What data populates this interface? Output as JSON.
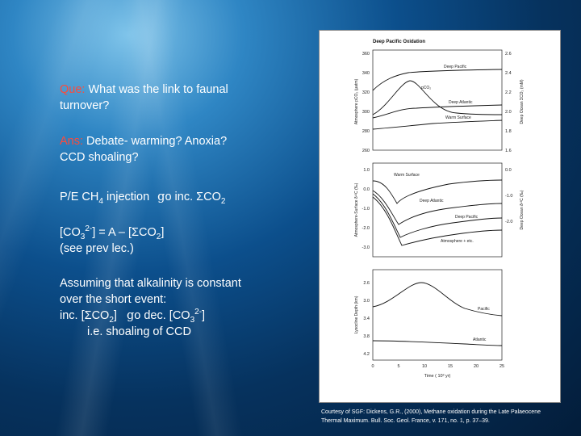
{
  "question": {
    "label": "Que:",
    "text": "What was the link to faunal turnover?"
  },
  "answer": {
    "label": "Ans:",
    "text": "Debate- warming? Anoxia? CCD shoaling?"
  },
  "injection": {
    "prefix": "P/E CH",
    "sub": "4",
    "mid": "injection",
    "arrow": "g",
    "suffix": "o inc. ΣCO",
    "suffix_sub": "2"
  },
  "carbonate_eq": {
    "part1": "[CO",
    "sub1": "3",
    "sup1": "2-",
    "part2": "] = A – [ΣCO",
    "sub2": "2",
    "part3": "]",
    "note": "(see prev lec.)"
  },
  "assumption": {
    "line1": "Assuming that alkalinity is constant",
    "line2": "over the short event:",
    "inc": " inc. [ΣCO",
    "inc_sub": "2",
    "inc_close": "]",
    "arrow": "g",
    "dec": "o dec. [CO",
    "dec_sub": "3",
    "dec_sup": "2-",
    "dec_close": "]",
    "line4": "i.e. shoaling of CCD"
  },
  "figure": {
    "title": "Deep Pacific Oxidation",
    "panel1": {
      "left_ticks": [
        "360",
        "340",
        "320",
        "300",
        "280",
        "260"
      ],
      "right_ticks": [
        "2.6",
        "2.4",
        "2.2",
        "2.0",
        "1.8",
        "1.6"
      ],
      "left_axis_label": "Atmosphere pCO₂ (µatm)",
      "right_axis_label": "Deep Ocean ΣCO₂ (mM)",
      "labels": [
        "Deep Pacific",
        "pCO₂",
        "Deep Atlantic",
        "Warm Surface"
      ]
    },
    "panel2": {
      "left_ticks": [
        "1.0",
        "0.0",
        "-1.0",
        "-2.0",
        "-3.0"
      ],
      "right_ticks": [
        "0.0",
        "-1.0",
        "-2.0"
      ],
      "left_axis_label": "Atmosphere-Surface δ¹³C (‰)",
      "right_axis_label": "Deep Ocean δ¹³C (‰)",
      "labels": [
        "Warm Surface",
        "Deep Atlantic",
        "Deep Pacific",
        "Atmosphere + etc."
      ]
    },
    "panel3": {
      "left_ticks": [
        "2.6",
        "3.0",
        "3.4",
        "3.8",
        "4.2"
      ],
      "x_ticks": [
        "0",
        "5",
        "10",
        "15",
        "20",
        "25"
      ],
      "left_axis_label": "Lysocline Depth (km)",
      "x_axis_label": "Time ( 10³ yr)",
      "labels": [
        "Pacific",
        "Atlantic"
      ]
    }
  },
  "credit": {
    "line1": "Courtesy of SGF: Dickens, G.R., (2000), Methane oxidation during the Late Palaeocene",
    "line2": "Thermal Maximum. Bull. Soc. Geol. France, v. 171, no. 1, p. 37–39."
  }
}
